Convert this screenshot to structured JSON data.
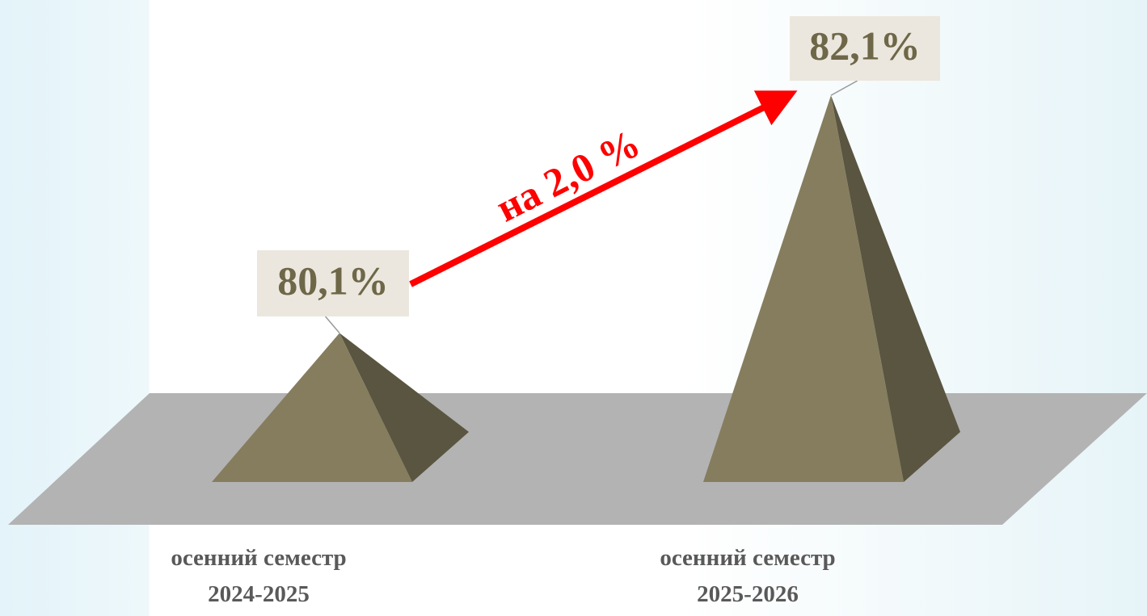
{
  "chart_data": {
    "type": "pyramid",
    "categories": [
      "осенний семестр\n2024-2025",
      "осенний семестр\n2025-2026"
    ],
    "values": [
      80.1,
      82.1
    ],
    "value_labels": [
      "80,1%",
      "82,1%"
    ],
    "color": "#857d5e",
    "ylim": [
      79.2,
      82.4
    ],
    "annotation": "на 2,0 %"
  }
}
